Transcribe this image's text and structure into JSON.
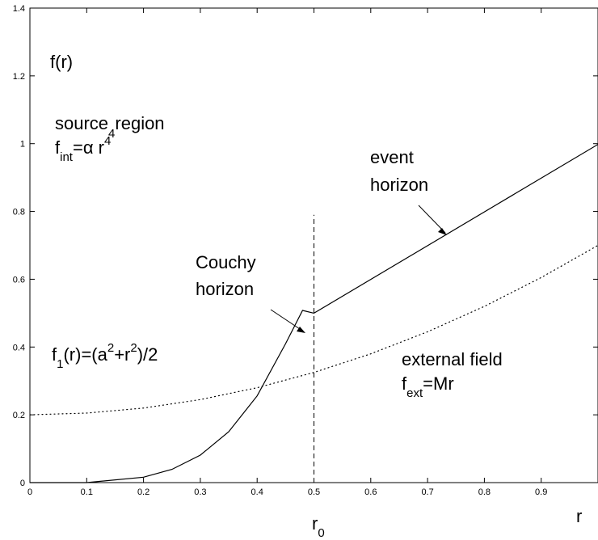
{
  "chart_data": {
    "type": "line",
    "xlim": [
      0,
      1
    ],
    "ylim": [
      0,
      1.4
    ],
    "x_ticks": [
      "0",
      "0.1",
      "0.2",
      "0.3",
      "0.4",
      "0.5",
      "0.6",
      "0.7",
      "0.8",
      "0.9"
    ],
    "y_ticks": [
      "0",
      "0.2",
      "0.4",
      "0.6",
      "0.8",
      "1",
      "1.2",
      "1.4"
    ],
    "grid": false,
    "legend": "none",
    "x_marker": {
      "x": 0.5,
      "y_range": [
        0,
        0.79
      ],
      "style": "dashed"
    },
    "series": [
      {
        "style": "solid",
        "segments": [
          {
            "formula": "f_int = alpha r^4",
            "x": [
              0.1,
              0.2,
              0.25,
              0.3,
              0.35,
              0.4,
              0.45,
              0.48,
              0.5
            ],
            "y": [
              0.0,
              0.016,
              0.039,
              0.081,
              0.15,
              0.256,
              0.41,
              0.508,
              0.5
            ]
          },
          {
            "formula": "f_ext = M r",
            "x": [
              0.5,
              1.0
            ],
            "y": [
              0.5,
              0.998
            ]
          }
        ]
      },
      {
        "style": "dotted",
        "formula": "f1(r) = (a^2 + r^2)/2",
        "x": [
          0,
          0.1,
          0.2,
          0.3,
          0.4,
          0.5,
          0.6,
          0.7,
          0.8,
          0.9,
          1.0
        ],
        "y": [
          0.2,
          0.205,
          0.22,
          0.245,
          0.28,
          0.325,
          0.38,
          0.445,
          0.52,
          0.605,
          0.7
        ]
      }
    ],
    "labels": {
      "ylabel": "f(r)",
      "xlabel": "r",
      "r0_main": "r",
      "r0_sub": "0",
      "source_line1": "source",
      "source_sub": "4",
      "source_line1b": "region",
      "fint_main": "f",
      "fint_sub": "int",
      "fint_rest": "=α r",
      "fint_sup": "4",
      "event_line1": "event",
      "event_line2": "horizon",
      "couchy_line1": "Couchy",
      "couchy_line2": "horizon",
      "f1_main": "f",
      "f1_sub": "1",
      "f1_a": "(r)=(a",
      "f1_sup1": "2",
      "f1_b": "+r",
      "f1_sup2": "2",
      "f1_c": ")/2",
      "external_line1": "external field",
      "fext_main": "f",
      "fext_sub": "ext",
      "fext_rest": "=Mr"
    }
  }
}
